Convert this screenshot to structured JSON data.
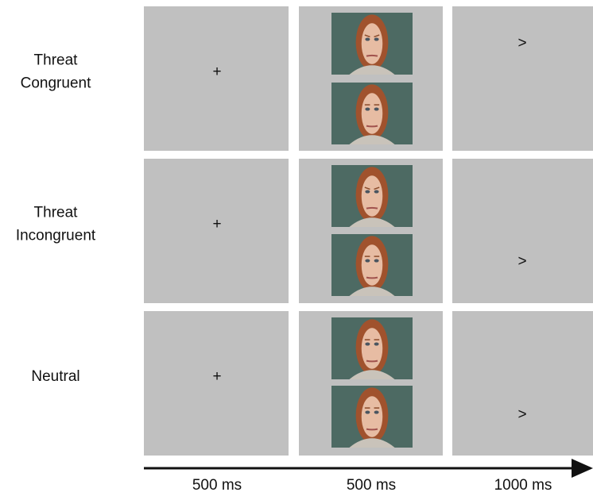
{
  "rows": [
    {
      "label": [
        "Threat",
        "Congruent"
      ],
      "fixation": "+",
      "probe": ">"
    },
    {
      "label": [
        "Threat",
        "Incongruent"
      ],
      "fixation": "+",
      "probe": ">"
    },
    {
      "label": [
        "Neutral"
      ],
      "fixation": "+",
      "probe": ">"
    }
  ],
  "time_labels": [
    "500 ms",
    "500 ms",
    "1000 ms"
  ]
}
